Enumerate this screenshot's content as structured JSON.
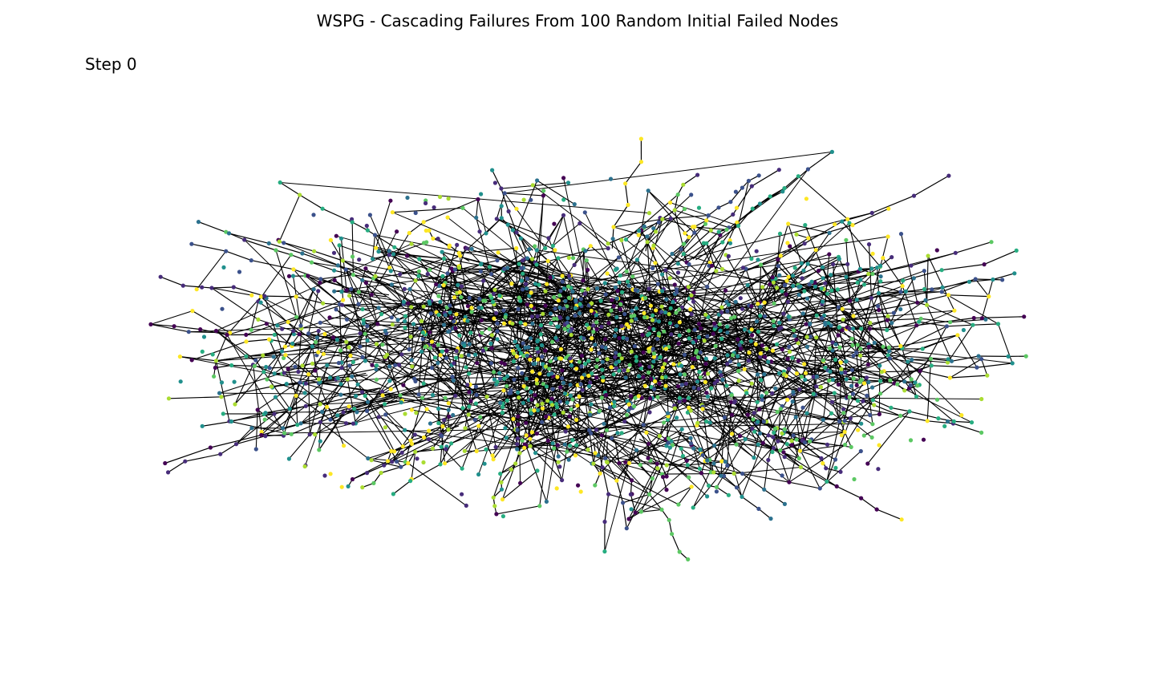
{
  "figure": {
    "title": "WSPG - Cascading Failures From 100 Random Initial Failed Nodes",
    "step_label": "Step 0"
  },
  "graph": {
    "node_colormap": [
      "#440154",
      "#472c7a",
      "#3b518b",
      "#2c718e",
      "#21908d",
      "#27ad81",
      "#5cc863",
      "#aadc32",
      "#fde725"
    ],
    "edge_color": "#000000",
    "background": "#ffffff"
  }
}
